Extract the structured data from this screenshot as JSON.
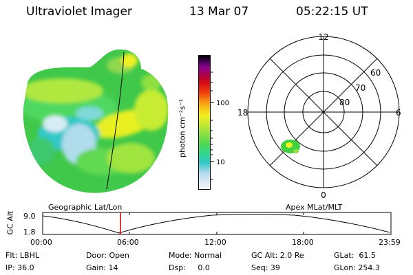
{
  "header": {
    "instrument": "Ultraviolet Imager",
    "date": "13 Mar 07",
    "time": "05:22:15 UT"
  },
  "colorbar": {
    "unit_label": "photon cm⁻²s⁻¹",
    "ticks": [
      {
        "label": "100",
        "value": 100
      },
      {
        "label": "10",
        "value": 10
      }
    ],
    "range_log": [
      0.4,
      2.5
    ],
    "colors": [
      "#d8e8f4",
      "#b0d8ec",
      "#30c8c8",
      "#30d888",
      "#50d850",
      "#90e040",
      "#c8e830",
      "#f0f020",
      "#f8c818",
      "#f89010",
      "#f04010",
      "#d81010",
      "#b00040",
      "#900090",
      "#400050",
      "#000000"
    ]
  },
  "polar_plot": {
    "mlt_labels": {
      "top": "12",
      "bottom": "0",
      "left": "18",
      "right": "6"
    },
    "lat_labels": [
      "60",
      "70",
      "80"
    ],
    "spot_colors": [
      "#40d040",
      "#f0f020"
    ]
  },
  "timeline": {
    "left_title": "Geographic Lat/Lon",
    "right_title": "Apex MLat/MLT",
    "y_axis_label": "GC Alt",
    "y_ticks": [
      "9.0",
      "1.8"
    ],
    "x_ticks": [
      "00:00",
      "06:00",
      "12:00",
      "18:00",
      "23:59"
    ],
    "current_time_fraction": 0.2238,
    "marker_color": "#e00000"
  },
  "info": {
    "flt": "Flt: LBHL",
    "ip": "IP: 36.0",
    "door": "Door: Open",
    "gain": "Gain: 14",
    "mode": "Mode: Normal",
    "dsp": "Dsp:     0.0",
    "gcalt": "GC Alt: 2.0 Re",
    "seq": "Seq: 39",
    "glat": "GLat:  61.5",
    "glon": "GLon: 254.3"
  }
}
